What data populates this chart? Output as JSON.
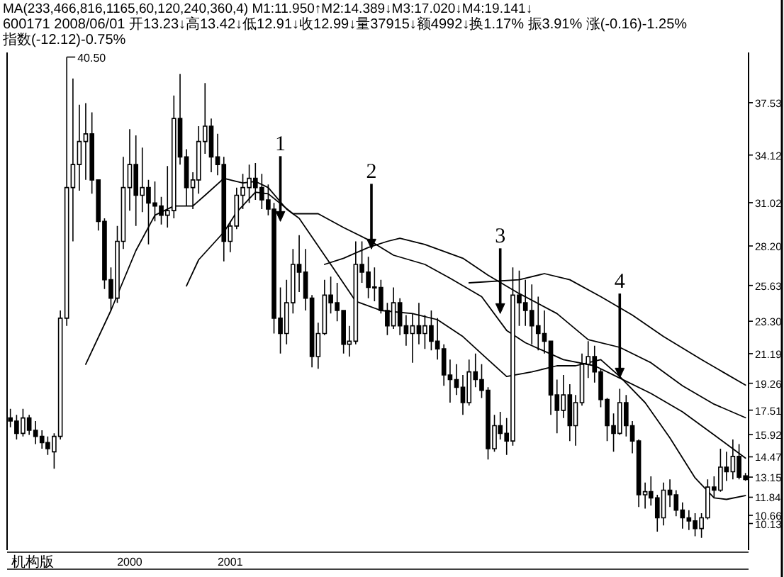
{
  "chart_data": {
    "type": "candlestick",
    "title": "MA(233,466,816,1165,60,120,240,360,4) M1:11.950↑M2:14.389↓M3:17.020↓M4:19.141↓",
    "subtitle": "600171 2008/06/01 开13.23↓高13.42↓低12.91↓收12.99↓量37915↓额4992↓换1.17% 振3.91% 涨(-0.16)-1.25% 指数(-12.12)-0.75%",
    "x": [
      "1998-09",
      "1998-10",
      "1998-11",
      "1998-12",
      "1999-01",
      "1999-02",
      "1999-03",
      "1999-04",
      "1999-05",
      "1999-06",
      "1999-07",
      "1999-08",
      "1999-09",
      "1999-10",
      "1999-11",
      "1999-12",
      "2000-01",
      "2000-02",
      "2000-03",
      "2000-04",
      "2000-05",
      "2000-06",
      "2000-07",
      "2000-08",
      "2000-09",
      "2000-10",
      "2000-11",
      "2000-12",
      "2001-01",
      "2001-02",
      "2001-03",
      "2001-04",
      "2001-05",
      "2001-06",
      "2001-07",
      "2001-08",
      "2001-09",
      "2001-10",
      "2001-11",
      "2001-12",
      "2002-01",
      "2002-02",
      "2002-03",
      "2002-04",
      "2002-05",
      "2002-06",
      "2002-07",
      "2002-08",
      "2002-09",
      "2002-10",
      "2002-11",
      "2002-12",
      "2003-01",
      "2003-02",
      "2003-03",
      "2003-04",
      "2003-05",
      "2003-06",
      "2003-07",
      "2003-08",
      "2003-09",
      "2003-10",
      "2003-11",
      "2003-12",
      "2004-01",
      "2004-02",
      "2004-03",
      "2004-04",
      "2004-05",
      "2004-06",
      "2004-07",
      "2004-08",
      "2004-09",
      "2004-10",
      "2004-11",
      "2004-12",
      "2005-01",
      "2005-02",
      "2005-03",
      "2005-04",
      "2005-05",
      "2005-06",
      "2005-07",
      "2005-08",
      "2005-09",
      "2005-10",
      "2005-11",
      "2005-12",
      "2006-01",
      "2006-02",
      "2006-03",
      "2006-04",
      "2006-05",
      "2006-06",
      "2006-07",
      "2006-08",
      "2006-09",
      "2006-10",
      "2006-11",
      "2006-12",
      "2007-01",
      "2007-02",
      "2007-03",
      "2007-04",
      "2007-05",
      "2007-06",
      "2007-07",
      "2007-08",
      "2007-09",
      "2007-10",
      "2007-11",
      "2007-12",
      "2008-01",
      "2008-02",
      "2008-03",
      "2008-04",
      "2008-05",
      "2008-06"
    ],
    "ohlc": [
      [
        17.0,
        17.6,
        16.4,
        16.8
      ],
      [
        16.8,
        17.2,
        15.6,
        16.0
      ],
      [
        16.0,
        17.6,
        15.8,
        17.0
      ],
      [
        17.0,
        17.2,
        15.9,
        16.2
      ],
      [
        16.2,
        16.8,
        15.3,
        15.8
      ],
      [
        15.8,
        16.2,
        15.0,
        15.4
      ],
      [
        15.4,
        15.8,
        14.6,
        15.0
      ],
      [
        14.8,
        16.0,
        13.7,
        15.8
      ],
      [
        15.8,
        24.0,
        15.6,
        23.5
      ],
      [
        23.5,
        40.5,
        23.0,
        32.0
      ],
      [
        32.0,
        39.1,
        28.5,
        33.5
      ],
      [
        33.5,
        37.4,
        31.8,
        35.0
      ],
      [
        35.0,
        37.5,
        32.5,
        35.5
      ],
      [
        35.5,
        36.9,
        31.6,
        32.5
      ],
      [
        32.5,
        32.5,
        29.2,
        29.8
      ],
      [
        29.8,
        30.0,
        25.4,
        26.0
      ],
      [
        26.0,
        26.8,
        24.0,
        24.8
      ],
      [
        24.8,
        29.5,
        24.5,
        28.5
      ],
      [
        28.5,
        34.0,
        28.0,
        32.0
      ],
      [
        32.0,
        35.8,
        30.5,
        33.5
      ],
      [
        33.5,
        35.4,
        29.5,
        31.5
      ],
      [
        31.5,
        34.6,
        30.4,
        32.0
      ],
      [
        32.0,
        32.5,
        28.3,
        31.0
      ],
      [
        31.0,
        32.4,
        29.8,
        30.8
      ],
      [
        30.8,
        31.4,
        29.6,
        30.2
      ],
      [
        30.2,
        33.4,
        29.4,
        30.5
      ],
      [
        30.5,
        38.0,
        30.0,
        36.5
      ],
      [
        36.5,
        39.4,
        33.5,
        34.0
      ],
      [
        34.0,
        34.5,
        30.8,
        32.0
      ],
      [
        32.0,
        33.0,
        30.6,
        32.5
      ],
      [
        32.5,
        36.0,
        31.6,
        35.0
      ],
      [
        35.0,
        38.8,
        34.2,
        36.0
      ],
      [
        36.0,
        36.5,
        33.0,
        34.0
      ],
      [
        34.0,
        35.5,
        32.8,
        33.5
      ],
      [
        33.5,
        34.0,
        27.2,
        28.5
      ],
      [
        28.5,
        29.8,
        27.8,
        29.5
      ],
      [
        29.5,
        32.0,
        29.3,
        31.5
      ],
      [
        31.5,
        32.9,
        30.6,
        32.0
      ],
      [
        32.0,
        33.5,
        31.0,
        32.6
      ],
      [
        32.6,
        33.6,
        31.2,
        32.0
      ],
      [
        32.0,
        32.9,
        30.6,
        31.2
      ],
      [
        31.2,
        32.2,
        30.2,
        30.6
      ],
      [
        30.6,
        31.0,
        22.5,
        23.5
      ],
      [
        23.5,
        25.5,
        21.2,
        22.5
      ],
      [
        22.5,
        26.0,
        21.8,
        24.5
      ],
      [
        24.5,
        28.0,
        23.8,
        27.0
      ],
      [
        27.0,
        28.9,
        25.2,
        26.5
      ],
      [
        26.5,
        28.0,
        24.0,
        24.8
      ],
      [
        24.8,
        25.0,
        20.3,
        21.0
      ],
      [
        21.0,
        23.2,
        20.2,
        22.5
      ],
      [
        22.5,
        26.0,
        22.4,
        25.0
      ],
      [
        25.0,
        26.2,
        23.8,
        24.5
      ],
      [
        24.5,
        25.8,
        23.3,
        24.0
      ],
      [
        24.0,
        24.0,
        21.2,
        21.8
      ],
      [
        21.8,
        23.0,
        21.0,
        22.0
      ],
      [
        22.0,
        28.5,
        21.8,
        27.0
      ],
      [
        27.0,
        28.5,
        25.8,
        26.5
      ],
      [
        26.5,
        27.5,
        24.8,
        25.5
      ],
      [
        25.5,
        26.8,
        24.6,
        25.5
      ],
      [
        25.5,
        26.0,
        23.8,
        24.0
      ],
      [
        24.0,
        24.5,
        22.4,
        23.0
      ],
      [
        23.0,
        25.5,
        22.8,
        24.5
      ],
      [
        24.5,
        24.8,
        22.4,
        23.0
      ],
      [
        23.0,
        23.7,
        21.7,
        22.5
      ],
      [
        22.5,
        23.8,
        20.6,
        23.0
      ],
      [
        23.0,
        24.5,
        21.8,
        22.5
      ],
      [
        22.5,
        23.7,
        21.5,
        23.0
      ],
      [
        23.0,
        24.0,
        21.4,
        22.0
      ],
      [
        22.0,
        23.5,
        20.8,
        21.5
      ],
      [
        21.5,
        21.8,
        19.1,
        19.8
      ],
      [
        19.8,
        20.8,
        18.0,
        19.5
      ],
      [
        19.5,
        20.5,
        18.5,
        19.0
      ],
      [
        19.0,
        19.8,
        17.2,
        18.0
      ],
      [
        18.0,
        20.8,
        17.8,
        20.0
      ],
      [
        20.0,
        21.2,
        19.0,
        19.5
      ],
      [
        19.5,
        20.5,
        18.3,
        18.8
      ],
      [
        18.8,
        19.0,
        14.3,
        15.0
      ],
      [
        15.0,
        17.2,
        14.8,
        16.5
      ],
      [
        16.5,
        17.4,
        15.6,
        16.0
      ],
      [
        16.0,
        17.0,
        14.6,
        15.5
      ],
      [
        15.5,
        26.8,
        15.2,
        25.0
      ],
      [
        25.0,
        26.6,
        23.0,
        24.5
      ],
      [
        24.5,
        26.0,
        23.0,
        24.0
      ],
      [
        24.0,
        25.7,
        21.8,
        23.0
      ],
      [
        23.0,
        24.9,
        21.4,
        22.5
      ],
      [
        22.5,
        24.0,
        21.2,
        22.0
      ],
      [
        22.0,
        22.0,
        17.2,
        18.5
      ],
      [
        18.5,
        19.5,
        16.0,
        17.5
      ],
      [
        17.5,
        19.8,
        17.0,
        18.5
      ],
      [
        18.5,
        19.2,
        15.5,
        16.5
      ],
      [
        16.5,
        18.5,
        15.2,
        18.0
      ],
      [
        18.0,
        21.2,
        17.8,
        20.5
      ],
      [
        20.5,
        22.0,
        19.6,
        21.0
      ],
      [
        21.0,
        21.7,
        19.3,
        20.0
      ],
      [
        20.0,
        20.2,
        17.7,
        18.2
      ],
      [
        18.2,
        18.3,
        15.5,
        16.5
      ],
      [
        16.5,
        17.3,
        14.8,
        16.0
      ],
      [
        16.0,
        18.9,
        15.9,
        18.0
      ],
      [
        18.0,
        18.5,
        15.8,
        16.5
      ],
      [
        16.5,
        16.8,
        14.7,
        15.5
      ],
      [
        15.5,
        15.6,
        11.2,
        12.0
      ],
      [
        12.0,
        12.8,
        11.1,
        12.2
      ],
      [
        12.2,
        13.2,
        11.3,
        11.8
      ],
      [
        11.8,
        12.0,
        9.6,
        10.5
      ],
      [
        10.5,
        12.8,
        10.0,
        12.3
      ],
      [
        12.3,
        13.0,
        11.2,
        12.0
      ],
      [
        12.0,
        12.3,
        10.6,
        11.0
      ],
      [
        11.0,
        11.5,
        9.8,
        10.5
      ],
      [
        10.5,
        11.0,
        9.7,
        10.3
      ],
      [
        10.3,
        10.8,
        9.3,
        9.8
      ],
      [
        9.8,
        10.8,
        9.2,
        10.5
      ],
      [
        10.5,
        13.0,
        10.4,
        12.5
      ],
      [
        12.5,
        13.2,
        11.8,
        12.3
      ],
      [
        12.3,
        15.0,
        12.2,
        13.8
      ],
      [
        13.8,
        14.8,
        12.9,
        13.5
      ],
      [
        13.5,
        15.6,
        13.0,
        14.5
      ],
      [
        14.5,
        15.3,
        13.0,
        13.15
      ],
      [
        13.23,
        13.42,
        12.91,
        12.99
      ]
    ],
    "color": "#000000",
    "series": [
      {
        "type": "line",
        "color": "#000000",
        "x": [
          "1999-09",
          "2000-01",
          "2000-05",
          "2000-08",
          "2000-11",
          "2001-02",
          "2001-04",
          "2001-07",
          "2001-10",
          "2001-12",
          "2002-02",
          "2002-05",
          "2002-07",
          "2002-12",
          "2003-04",
          "2003-08",
          "2004-01",
          "2004-05",
          "2004-09",
          "2005-01",
          "2005-04",
          "2005-08",
          "2005-12",
          "2006-03",
          "2006-07",
          "2006-10",
          "2007-02",
          "2007-06",
          "2007-10",
          "2008-01",
          "2008-03",
          "2008-06"
        ],
        "values": [
          20.5,
          24.0,
          27.9,
          30.2,
          30.8,
          30.8,
          31.5,
          32.6,
          32.3,
          32.4,
          32.0,
          30.6,
          30.0,
          27.0,
          24.6,
          24.0,
          23.8,
          23.4,
          22.3,
          20.8,
          19.7,
          20.0,
          20.4,
          20.4,
          20.8,
          19.7,
          18.0,
          15.7,
          13.1,
          11.8,
          11.7,
          11.95
        ]
      },
      {
        "type": "line",
        "color": "#000000",
        "x": [
          "2001-01",
          "2001-03",
          "2001-07",
          "2001-09",
          "2001-12",
          "2002-02",
          "2002-06",
          "2002-10",
          "2003-02",
          "2003-06",
          "2003-10",
          "2004-03",
          "2004-07",
          "2004-12",
          "2005-04",
          "2005-07",
          "2006-01",
          "2006-06",
          "2006-10",
          "2007-03",
          "2007-08",
          "2008-01",
          "2008-06"
        ],
        "values": [
          25.6,
          27.3,
          29.1,
          30.4,
          31.7,
          31.6,
          30.3,
          30.3,
          29.4,
          28.6,
          27.6,
          27.0,
          26.1,
          24.9,
          22.7,
          21.9,
          20.8,
          20.4,
          19.6,
          18.6,
          17.4,
          15.9,
          14.389
        ]
      },
      {
        "type": "line",
        "color": "#000000",
        "x": [
          "2002-11",
          "2003-02",
          "2003-06",
          "2003-09",
          "2003-11",
          "2004-03",
          "2004-09",
          "2005-01",
          "2005-06",
          "2005-12",
          "2006-05",
          "2006-10",
          "2007-03",
          "2007-08",
          "2008-01",
          "2008-06"
        ],
        "values": [
          27.0,
          27.4,
          28.1,
          28.5,
          28.7,
          28.3,
          27.4,
          26.3,
          25.1,
          23.8,
          22.1,
          21.6,
          20.6,
          19.1,
          17.9,
          17.02
        ]
      },
      {
        "type": "line",
        "color": "#000000",
        "x": [
          "2004-10",
          "2005-06",
          "2005-10",
          "2006-02",
          "2006-07",
          "2006-12",
          "2007-05",
          "2007-11",
          "2008-06"
        ],
        "values": [
          25.8,
          26.0,
          26.4,
          26.0,
          24.9,
          23.7,
          22.3,
          20.8,
          19.141
        ]
      }
    ],
    "xlim": [
      "1998-08-16",
      "2008-06-16"
    ],
    "xticks": [
      {
        "value": "2000-04",
        "label": "2000"
      },
      {
        "value": "2001-08",
        "label": "2001"
      }
    ],
    "ylim": [
      8.4,
      40.8
    ],
    "yticks": [
      10.13,
      10.66,
      11.84,
      13.15,
      14.47,
      15.92,
      17.51,
      19.26,
      21.19,
      {
        "value": 23.3,
        "label": "23.30"
      },
      25.63,
      {
        "value": 28.2,
        "label": "28.20"
      },
      31.02,
      34.12,
      37.53
    ],
    "annotations": [
      {
        "text": "40.50",
        "x": "1999-06",
        "y": 40.5
      },
      {
        "text": "1",
        "x": "2002-04",
        "y": 29.8
      },
      {
        "text": "2",
        "x": "2003-06-16",
        "y": 28.0
      },
      {
        "text": "3",
        "x": "2005-03",
        "y": 23.8
      },
      {
        "text": "4",
        "x": "2006-10",
        "y": 19.6
      },
      "机构版"
    ]
  }
}
